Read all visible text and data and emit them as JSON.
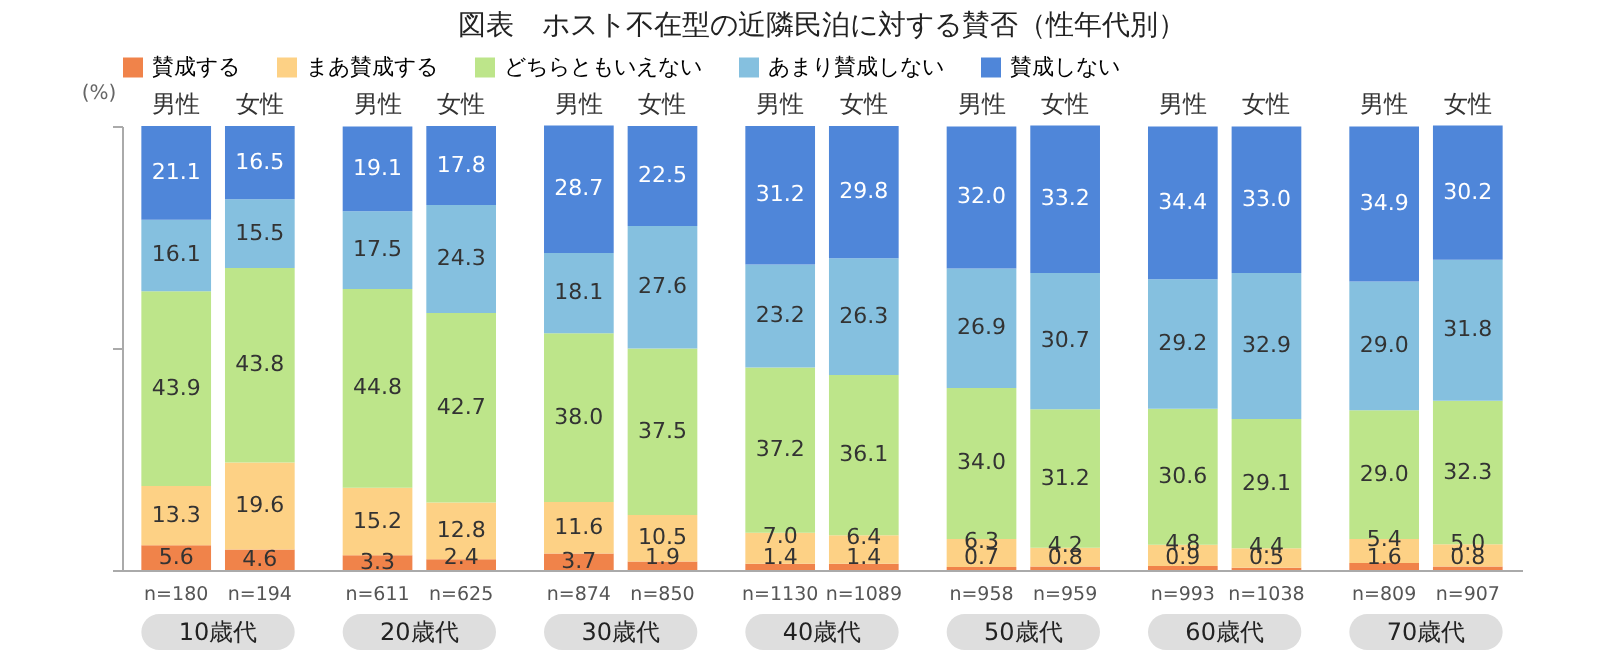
{
  "chart_data": {
    "type": "bar",
    "stacked": true,
    "title": "図表　ホスト不在型の近隣民泊に対する賛否（性年代別）",
    "categories": [
      "男性",
      "女性",
      "男性",
      "女性",
      "男性",
      "女性",
      "男性",
      "女性",
      "男性",
      "女性",
      "男性",
      "女性",
      "男性",
      "女性"
    ],
    "series": [
      {
        "name": "賛成する",
        "color": "#f0834a",
        "values": [
          5.6,
          4.6,
          3.3,
          2.4,
          3.7,
          1.9,
          1.4,
          1.4,
          0.7,
          0.8,
          0.9,
          0.5,
          1.6,
          0.8
        ],
        "value_labels": [
          "5.6",
          "4.6",
          "3.3",
          "2.4",
          "3.7",
          "1.9",
          "1.4",
          "1.4",
          "0.7",
          "0.8",
          "0.9",
          "0.5",
          "1.6",
          "0.8"
        ]
      },
      {
        "name": "まあ賛成する",
        "color": "#fdd185",
        "values": [
          13.3,
          19.6,
          15.2,
          12.8,
          11.6,
          10.5,
          7.0,
          6.4,
          6.3,
          4.2,
          4.8,
          4.4,
          5.4,
          5.0
        ],
        "value_labels": [
          "13.3",
          "19.6",
          "15.2",
          "12.8",
          "11.6",
          "10.5",
          "7.0",
          "6.4",
          "6.3",
          "4.2",
          "4.8",
          "4.4",
          "5.4",
          "5.0"
        ]
      },
      {
        "name": "どちらともいえない",
        "color": "#bde58a",
        "values": [
          43.9,
          43.8,
          44.8,
          42.7,
          38.0,
          37.5,
          37.2,
          36.1,
          34.0,
          31.2,
          30.6,
          29.1,
          29.0,
          32.3
        ],
        "value_labels": [
          "43.9",
          "43.8",
          "44.8",
          "42.7",
          "38.0",
          "37.5",
          "37.2",
          "36.1",
          "34.0",
          "31.2",
          "30.6",
          "29.1",
          "29.0",
          "32.3"
        ]
      },
      {
        "name": "あまり賛成しない",
        "color": "#85c0df",
        "values": [
          16.1,
          15.5,
          17.5,
          24.3,
          18.1,
          27.6,
          23.2,
          26.3,
          26.9,
          30.7,
          29.2,
          32.9,
          29.0,
          31.8
        ],
        "value_labels": [
          "16.1",
          "15.5",
          "17.5",
          "24.3",
          "18.1",
          "27.6",
          "23.2",
          "26.3",
          "26.9",
          "30.7",
          "29.2",
          "32.9",
          "29.0",
          "31.8"
        ]
      },
      {
        "name": "賛成しない",
        "color": "#4f86d9",
        "values": [
          21.1,
          16.5,
          19.1,
          17.8,
          28.7,
          22.5,
          31.2,
          29.8,
          32.0,
          33.2,
          34.4,
          33.0,
          34.9,
          30.2
        ],
        "value_labels": [
          "21.1",
          "16.5",
          "19.1",
          "17.8",
          "28.7",
          "22.5",
          "31.2",
          "29.8",
          "32.0",
          "33.2",
          "34.4",
          "33.0",
          "34.9",
          "30.2"
        ]
      }
    ],
    "ylabel": "(%)",
    "ylim": [
      0,
      100
    ],
    "yticks": [
      {
        "value": 0,
        "label": null
      },
      {
        "value": 50,
        "label": null
      },
      {
        "value": 100,
        "label": null
      }
    ],
    "tick_labels": "x",
    "legend": "top",
    "annotations": [
      "n=180",
      "n=194",
      "n=611",
      "n=625",
      "n=874",
      "n=850",
      "n=1130",
      "n=1089",
      "n=958",
      "n=959",
      "n=993",
      "n=1038",
      "n=809",
      "n=907",
      "10歳代",
      "20歳代",
      "30歳代",
      "40歳代",
      "50歳代",
      "60歳代",
      "70歳代"
    ]
  }
}
